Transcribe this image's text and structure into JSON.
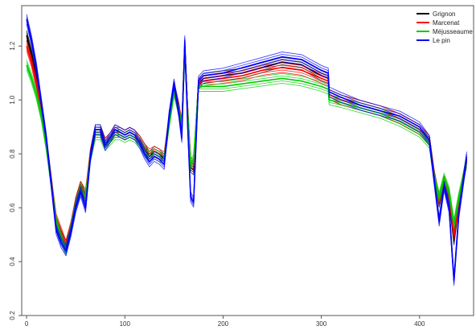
{
  "chart_data": {
    "type": "line",
    "title": "",
    "xlabel": "",
    "ylabel": "",
    "xlim": [
      -5,
      455
    ],
    "ylim": [
      0.2,
      1.35
    ],
    "x_ticks": [
      0,
      100,
      200,
      300,
      400
    ],
    "x_tick_labels": [
      "0",
      "100",
      "200",
      "300",
      "400"
    ],
    "y_ticks": [
      0.2,
      0.4,
      0.6,
      0.8,
      1.0,
      1.2
    ],
    "y_tick_labels": [
      "0.2",
      "0.4",
      "0.6",
      "0.8",
      "1.0",
      "1.2"
    ],
    "grid": false,
    "legend_position": "top-right",
    "x": [
      0,
      5,
      10,
      15,
      20,
      25,
      30,
      35,
      40,
      45,
      50,
      55,
      60,
      65,
      70,
      75,
      80,
      85,
      90,
      95,
      100,
      105,
      110,
      115,
      120,
      125,
      130,
      135,
      140,
      145,
      150,
      155,
      158,
      161,
      164,
      167,
      170,
      175,
      180,
      200,
      220,
      240,
      260,
      280,
      300,
      307,
      308,
      320,
      340,
      360,
      380,
      400,
      410,
      415,
      420,
      425,
      430,
      435,
      440,
      445,
      448
    ],
    "series": [
      {
        "name": "Grignon",
        "color": "#000000",
        "values": [
          1.24,
          1.17,
          1.08,
          0.97,
          0.85,
          0.7,
          0.55,
          0.5,
          0.46,
          0.52,
          0.62,
          0.68,
          0.64,
          0.8,
          0.89,
          0.89,
          0.84,
          0.86,
          0.89,
          0.88,
          0.87,
          0.88,
          0.87,
          0.85,
          0.82,
          0.79,
          0.81,
          0.8,
          0.78,
          0.93,
          1.05,
          0.97,
          0.9,
          1.2,
          0.95,
          0.75,
          0.74,
          1.06,
          1.08,
          1.09,
          1.1,
          1.12,
          1.14,
          1.13,
          1.09,
          1.08,
          1.02,
          1.0,
          0.98,
          0.96,
          0.93,
          0.89,
          0.85,
          0.72,
          0.62,
          0.7,
          0.64,
          0.48,
          0.62,
          0.72,
          0.78
        ]
      },
      {
        "name": "Marcenat",
        "color": "#ff0000",
        "values": [
          1.2,
          1.14,
          1.06,
          0.96,
          0.84,
          0.7,
          0.56,
          0.51,
          0.46,
          0.53,
          0.62,
          0.68,
          0.65,
          0.8,
          0.88,
          0.88,
          0.84,
          0.86,
          0.88,
          0.88,
          0.87,
          0.88,
          0.87,
          0.85,
          0.82,
          0.8,
          0.81,
          0.8,
          0.79,
          0.92,
          1.04,
          0.97,
          0.91,
          1.19,
          0.96,
          0.77,
          0.76,
          1.06,
          1.07,
          1.08,
          1.09,
          1.11,
          1.12,
          1.11,
          1.08,
          1.07,
          1.02,
          1.0,
          0.98,
          0.96,
          0.93,
          0.89,
          0.85,
          0.72,
          0.63,
          0.7,
          0.65,
          0.5,
          0.62,
          0.72,
          0.77
        ]
      },
      {
        "name": "Méjusseaume",
        "color": "#00cc00",
        "values": [
          1.13,
          1.08,
          1.02,
          0.94,
          0.83,
          0.69,
          0.55,
          0.49,
          0.44,
          0.52,
          0.61,
          0.67,
          0.64,
          0.79,
          0.87,
          0.87,
          0.83,
          0.85,
          0.87,
          0.87,
          0.86,
          0.87,
          0.86,
          0.84,
          0.81,
          0.79,
          0.8,
          0.79,
          0.78,
          0.91,
          1.03,
          0.96,
          0.9,
          1.18,
          0.95,
          0.76,
          0.78,
          1.05,
          1.05,
          1.05,
          1.06,
          1.07,
          1.08,
          1.07,
          1.05,
          1.04,
          1.0,
          0.99,
          0.97,
          0.95,
          0.92,
          0.88,
          0.84,
          0.71,
          0.64,
          0.71,
          0.66,
          0.54,
          0.64,
          0.72,
          0.77
        ]
      },
      {
        "name": "Le pin",
        "color": "#0000ff",
        "values": [
          1.3,
          1.22,
          1.12,
          0.99,
          0.86,
          0.69,
          0.52,
          0.47,
          0.44,
          0.51,
          0.6,
          0.66,
          0.6,
          0.79,
          0.89,
          0.89,
          0.83,
          0.86,
          0.89,
          0.88,
          0.87,
          0.88,
          0.87,
          0.84,
          0.8,
          0.77,
          0.79,
          0.78,
          0.76,
          0.94,
          1.06,
          0.95,
          0.86,
          1.22,
          0.9,
          0.64,
          0.62,
          1.07,
          1.09,
          1.1,
          1.12,
          1.14,
          1.16,
          1.15,
          1.11,
          1.1,
          1.03,
          1.01,
          0.98,
          0.96,
          0.94,
          0.9,
          0.85,
          0.7,
          0.55,
          0.68,
          0.6,
          0.33,
          0.58,
          0.71,
          0.79
        ]
      }
    ]
  }
}
